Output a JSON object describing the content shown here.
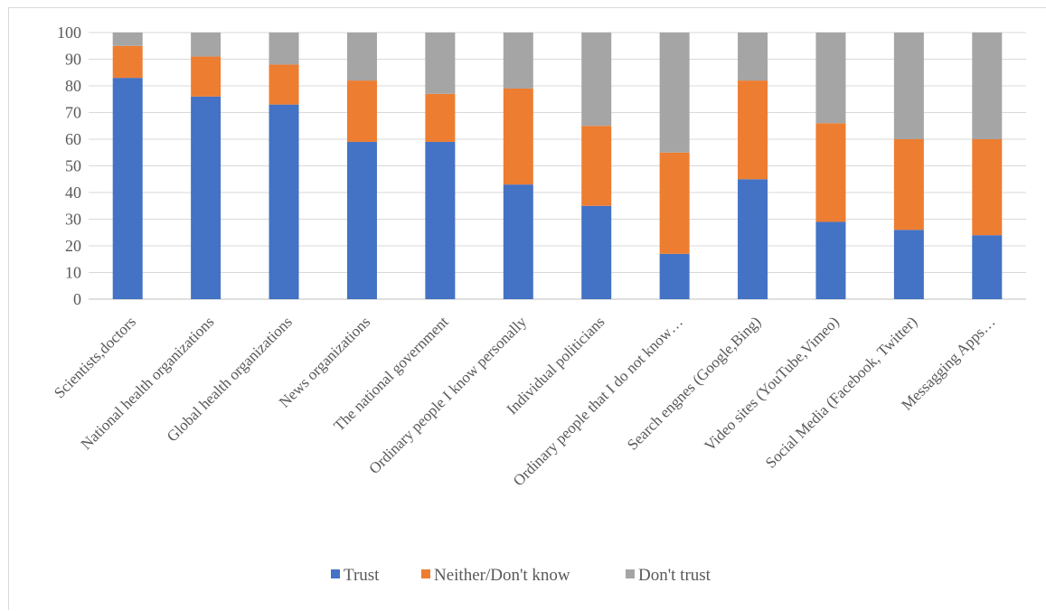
{
  "chart_data": {
    "type": "bar",
    "stacked": true,
    "title": "",
    "xlabel": "",
    "ylabel": "",
    "ylim": [
      0,
      100
    ],
    "yticks": [
      0,
      10,
      20,
      30,
      40,
      50,
      60,
      70,
      80,
      90,
      100
    ],
    "grid": true,
    "legend_position": "bottom",
    "categories": [
      "Scientists,doctors",
      "National health organizations",
      "Global health organizations",
      "News organizations",
      "The national government",
      "Ordinary people I know personally",
      "Individual politicians",
      "Ordinary people that I do not know…",
      "Search engnes (Google,Bing)",
      "Video sites (YouTube,Vimeo)",
      "Social Media (Facebook, Twitter)",
      "Messagging Apps…"
    ],
    "series": [
      {
        "name": "Trust",
        "color": "#4472c4",
        "values": [
          83,
          76,
          73,
          59,
          59,
          43,
          35,
          17,
          45,
          29,
          26,
          24
        ]
      },
      {
        "name": "Neither/Don't know",
        "color": "#ed7d31",
        "values": [
          12,
          15,
          15,
          23,
          18,
          36,
          30,
          38,
          37,
          37,
          34,
          36
        ]
      },
      {
        "name": "Don't trust",
        "color": "#a5a5a5",
        "values": [
          5,
          9,
          12,
          18,
          23,
          21,
          35,
          45,
          18,
          34,
          40,
          40
        ]
      }
    ]
  }
}
